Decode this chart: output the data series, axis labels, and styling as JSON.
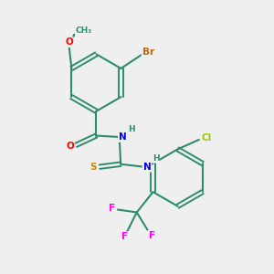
{
  "background_color": "#efefef",
  "bond_color": "#2d8c6e",
  "atom_colors": {
    "O": "#ff0000",
    "N": "#0000ff",
    "S": "#cc8800",
    "Br": "#cc6600",
    "Cl": "#99cc00",
    "F": "#ff00ff",
    "C": "#2d8c6e",
    "H": "#2d8c6e"
  },
  "figsize": [
    3.0,
    3.0
  ],
  "dpi": 100
}
